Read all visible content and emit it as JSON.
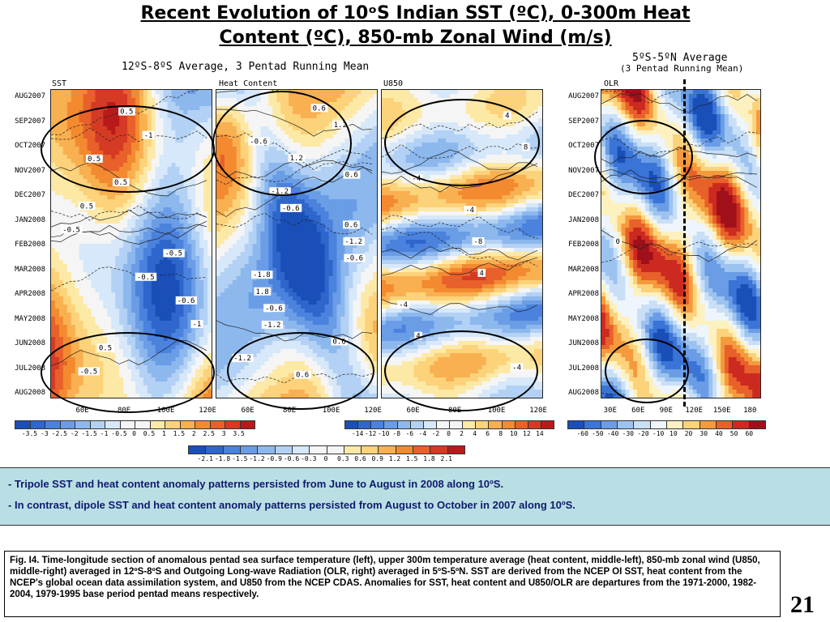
{
  "title_line1": "Recent Evolution of 10ᵒS Indian SST (ºC), 0-300m Heat",
  "title_line2": "Content (ºC), 850-mb Zonal Wind (m/s)",
  "subtitle_left": "12ºS-8ºS Average, 3 Pentad Running Mean",
  "subtitle_right_1": "5ºS-5ºN Average",
  "subtitle_right_2": "(3 Pentad Running Mean)",
  "colors": {
    "bullet_box": "#b9dfe4",
    "bullet_text": "#0f1a6e"
  },
  "chart_data": [
    {
      "type": "heatmap",
      "name": "SST",
      "x_ticks": [
        "60E",
        "80E",
        "100E",
        "120E"
      ],
      "y_ticks": [
        "AUG2007",
        "SEP2007",
        "OCT2007",
        "NOV2007",
        "DEC2007",
        "JAN2008",
        "FEB2008",
        "MAR2008",
        "APR2008",
        "MAY2008",
        "JUN2008",
        "JUL2008",
        "AUG2008"
      ],
      "contour_labels": [
        "0.5",
        "-1",
        "0.5",
        "0.5",
        "0.5",
        "-0.5",
        "-0.5",
        "-0.5",
        "-0.6",
        "-1",
        "0.5",
        "-0.5"
      ],
      "colorbar_labels": [
        "-3.5",
        "-3",
        "-2.5",
        "-2",
        "-1.5",
        "-1",
        "-0.5",
        "0",
        "0.5",
        "1",
        "1.5",
        "2",
        "2.5",
        "3",
        "3.5"
      ]
    },
    {
      "type": "heatmap",
      "name": "Heat Content",
      "x_ticks": [
        "60E",
        "80E",
        "100E",
        "120E"
      ],
      "y_ticks": [
        "AUG2007",
        "SEP2007",
        "OCT2007",
        "NOV2007",
        "DEC2007",
        "JAN2008",
        "FEB2008",
        "MAR2008",
        "APR2008",
        "MAY2008",
        "JUN2008",
        "JUL2008",
        "AUG2008"
      ],
      "contour_labels": [
        "0.6",
        "1.2",
        "-0.6",
        "1.2",
        "0.6",
        "-1.2",
        "-0.6",
        "0.6",
        "-1.2",
        "-0.6",
        "-1.8",
        "1.8",
        "-0.6",
        "-1.2",
        "0.6",
        "-1.2",
        "0.6"
      ],
      "colorbar_labels": [
        "-2.1",
        "-1.8",
        "-1.5",
        "-1.2",
        "-0.9",
        "-0.6",
        "-0.3",
        "0",
        "0.3",
        "0.6",
        "0.9",
        "1.2",
        "1.5",
        "1.8",
        "2.1"
      ]
    },
    {
      "type": "heatmap",
      "name": "U850",
      "x_ticks": [
        "60E",
        "80E",
        "100E",
        "120E"
      ],
      "y_ticks": [
        "AUG2007",
        "SEP2007",
        "OCT2007",
        "NOV2007",
        "DEC2007",
        "JAN2008",
        "FEB2008",
        "MAR2008",
        "APR2008",
        "MAY2008",
        "JUN2008",
        "JUL2008",
        "AUG2008"
      ],
      "contour_labels": [
        "4",
        "8",
        "-4",
        "-4",
        "-8",
        "4",
        "-4",
        "4",
        "-4"
      ],
      "colorbar_labels": [
        "-14",
        "-12",
        "-10",
        "-8",
        "-6",
        "-4",
        "-2",
        "0",
        "2",
        "4",
        "6",
        "8",
        "10",
        "12",
        "14"
      ]
    },
    {
      "type": "heatmap",
      "name": "OLR",
      "x_ticks": [
        "30E",
        "60E",
        "90E",
        "120E",
        "150E",
        "180"
      ],
      "y_ticks": [
        "AUG2007",
        "SEP2007",
        "OCT2007",
        "NOV2007",
        "DEC2007",
        "JAN2008",
        "FEB2008",
        "MAR2008",
        "APR2008",
        "MAY2008",
        "JUN2008",
        "JUL2008",
        "AUG2008"
      ],
      "contour_labels": [
        "0"
      ],
      "colorbar_labels": [
        "-60",
        "-50",
        "-40",
        "-30",
        "-20",
        "-10",
        "10",
        "20",
        "30",
        "40",
        "50",
        "60"
      ]
    }
  ],
  "bullets": [
    "Tripole SST and heat content anomaly patterns persisted from June to August in 2008 along 10ºS.",
    "In contrast, dipole SST and heat content anomaly patterns persisted from August to October in 2007 along 10ºS."
  ],
  "caption": "Fig. I4. Time-longitude section of anomalous pentad sea surface temperature (left), upper 300m temperature average (heat content, middle-left), 850-mb zonal wind (U850, middle-right) averaged in 12ºS-8ºS and Outgoing Long-wave Radiation (OLR, right) averaged in 5ºS-5ºN. SST are derived from the NCEP OI SST, heat content from the NCEP's global ocean data assimilation system, and U850 from the NCEP CDAS.  Anomalies for SST, heat content and U850/OLR are departures from the 1971-2000, 1982-2004, 1979-1995 base period pentad means respectively.",
  "page_number": "21"
}
